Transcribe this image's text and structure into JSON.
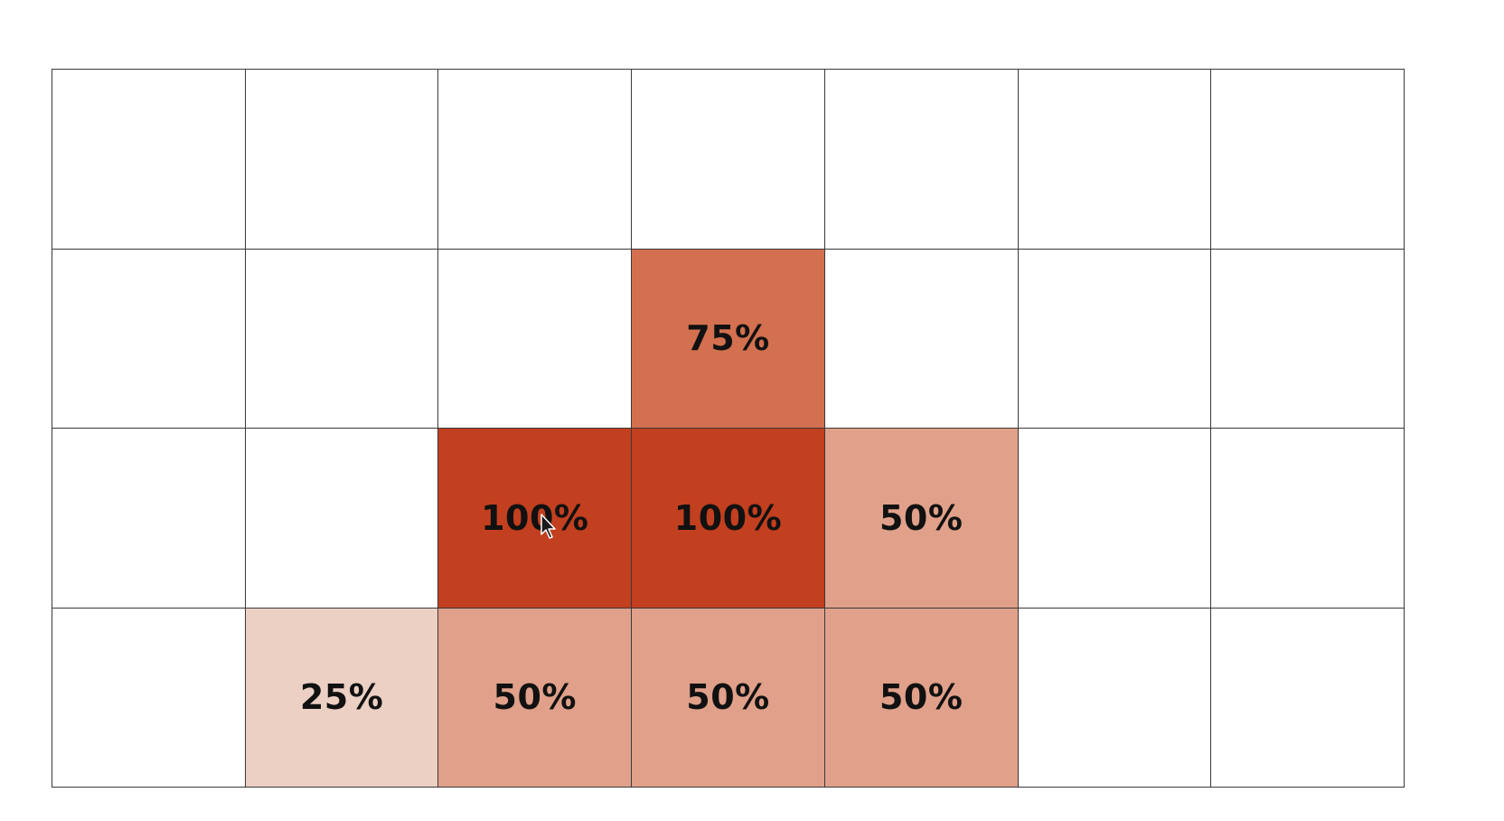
{
  "heatmap": {
    "rows": 4,
    "columns": 7,
    "cells": [
      [
        "",
        "",
        "",
        "",
        "",
        "",
        ""
      ],
      [
        "",
        "",
        "",
        "75%",
        "",
        "",
        ""
      ],
      [
        "",
        "",
        "100%",
        "100%",
        "50%",
        "",
        ""
      ],
      [
        "",
        "25%",
        "50%",
        "50%",
        "50%",
        "",
        ""
      ]
    ],
    "intensity": [
      [
        0,
        0,
        0,
        0,
        0,
        0,
        0
      ],
      [
        0,
        0,
        0,
        0.75,
        0,
        0,
        0
      ],
      [
        0,
        0,
        1.0,
        1.0,
        0.5,
        0,
        0
      ],
      [
        0,
        0.25,
        0.5,
        0.5,
        0.5,
        0,
        0
      ]
    ],
    "colors": {
      "0.25": "#ecd0c4",
      "0.5": "#e0a08a",
      "0.75": "#d3704f",
      "1.0": "#c23f1f",
      "empty": "#ffffff",
      "gridline": "#3a3a3a"
    }
  },
  "cursor": {
    "icon": "mouse-pointer-icon",
    "cell_row": 2,
    "cell_col": 2
  }
}
